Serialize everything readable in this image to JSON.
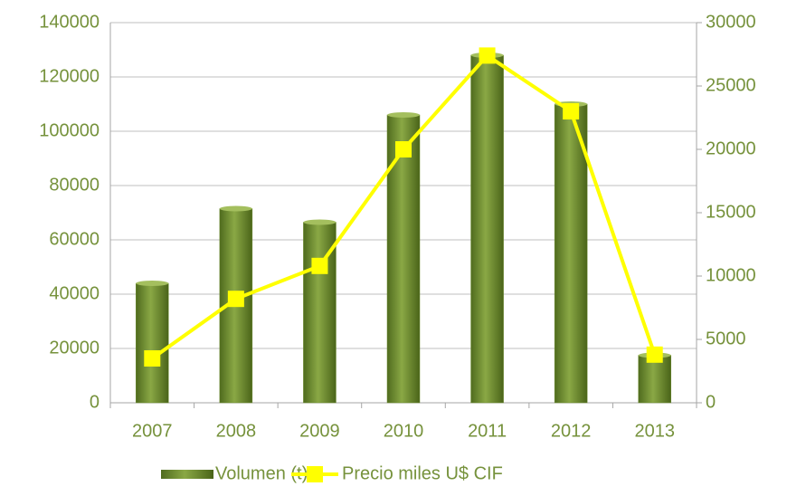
{
  "chart_data": {
    "type": "bar-line",
    "categories": [
      "2007",
      "2008",
      "2009",
      "2010",
      "2011",
      "2012",
      "2013"
    ],
    "series": [
      {
        "name": "Volumen (t)",
        "color": "#6b8a2e",
        "type": "bar",
        "values": [
          44000,
          71500,
          66500,
          106000,
          128000,
          110000,
          17500
        ]
      },
      {
        "name": "Precio miles U$ CIF",
        "color": "#ffff00",
        "type": "line",
        "axis": "y2",
        "values": [
          3500,
          8200,
          10800,
          20000,
          27400,
          23000,
          3800
        ]
      }
    ],
    "ylim": [
      0,
      140000
    ],
    "yticks": [
      0,
      20000,
      40000,
      60000,
      80000,
      100000,
      120000,
      140000
    ],
    "y2lim": [
      0,
      30000
    ],
    "y2ticks": [
      0,
      5000,
      10000,
      15000,
      20000,
      25000,
      30000
    ],
    "grid": true,
    "legend": "bottom"
  }
}
